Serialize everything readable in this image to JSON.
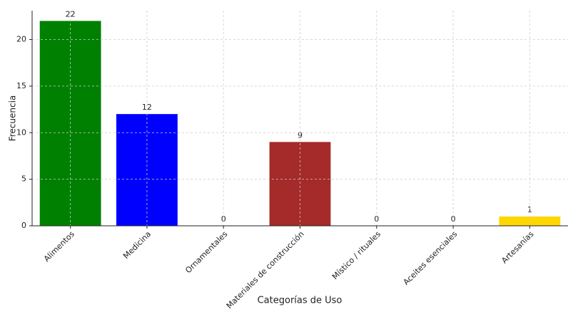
{
  "chart_data": {
    "type": "bar",
    "xlabel": "Categorías de Uso",
    "ylabel": "Frecuencia",
    "categories": [
      "Alimentos",
      "Medicina",
      "Ornamentales",
      "Materiales de construcción",
      "Místico / rituales",
      "Aceites esenciales",
      "Artesanías"
    ],
    "values": [
      22,
      12,
      0,
      9,
      0,
      0,
      1
    ],
    "colors": [
      "#008000",
      "#0000ff",
      null,
      "#a52a2a",
      null,
      null,
      "#ffd700"
    ],
    "ylim": [
      0,
      23.1
    ],
    "yticks": [
      0,
      5,
      10,
      15,
      20
    ],
    "grid": true
  }
}
